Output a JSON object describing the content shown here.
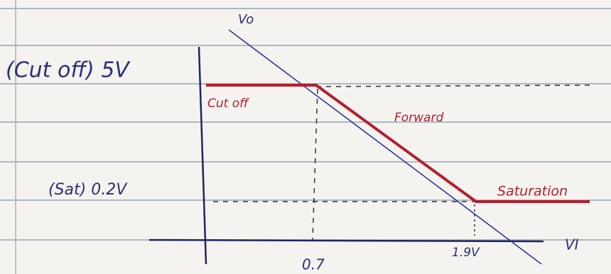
{
  "axes": {
    "y_label": "Vo",
    "x_label": "VI"
  },
  "levels": {
    "high": "(Cut off) 5V",
    "low": "(Sat) 0.2V"
  },
  "thresholds": {
    "first": "0.7",
    "second": "1.9V"
  },
  "regions": {
    "cutoff": "Cut off",
    "forward": "Forward",
    "saturation": "Saturation"
  }
}
